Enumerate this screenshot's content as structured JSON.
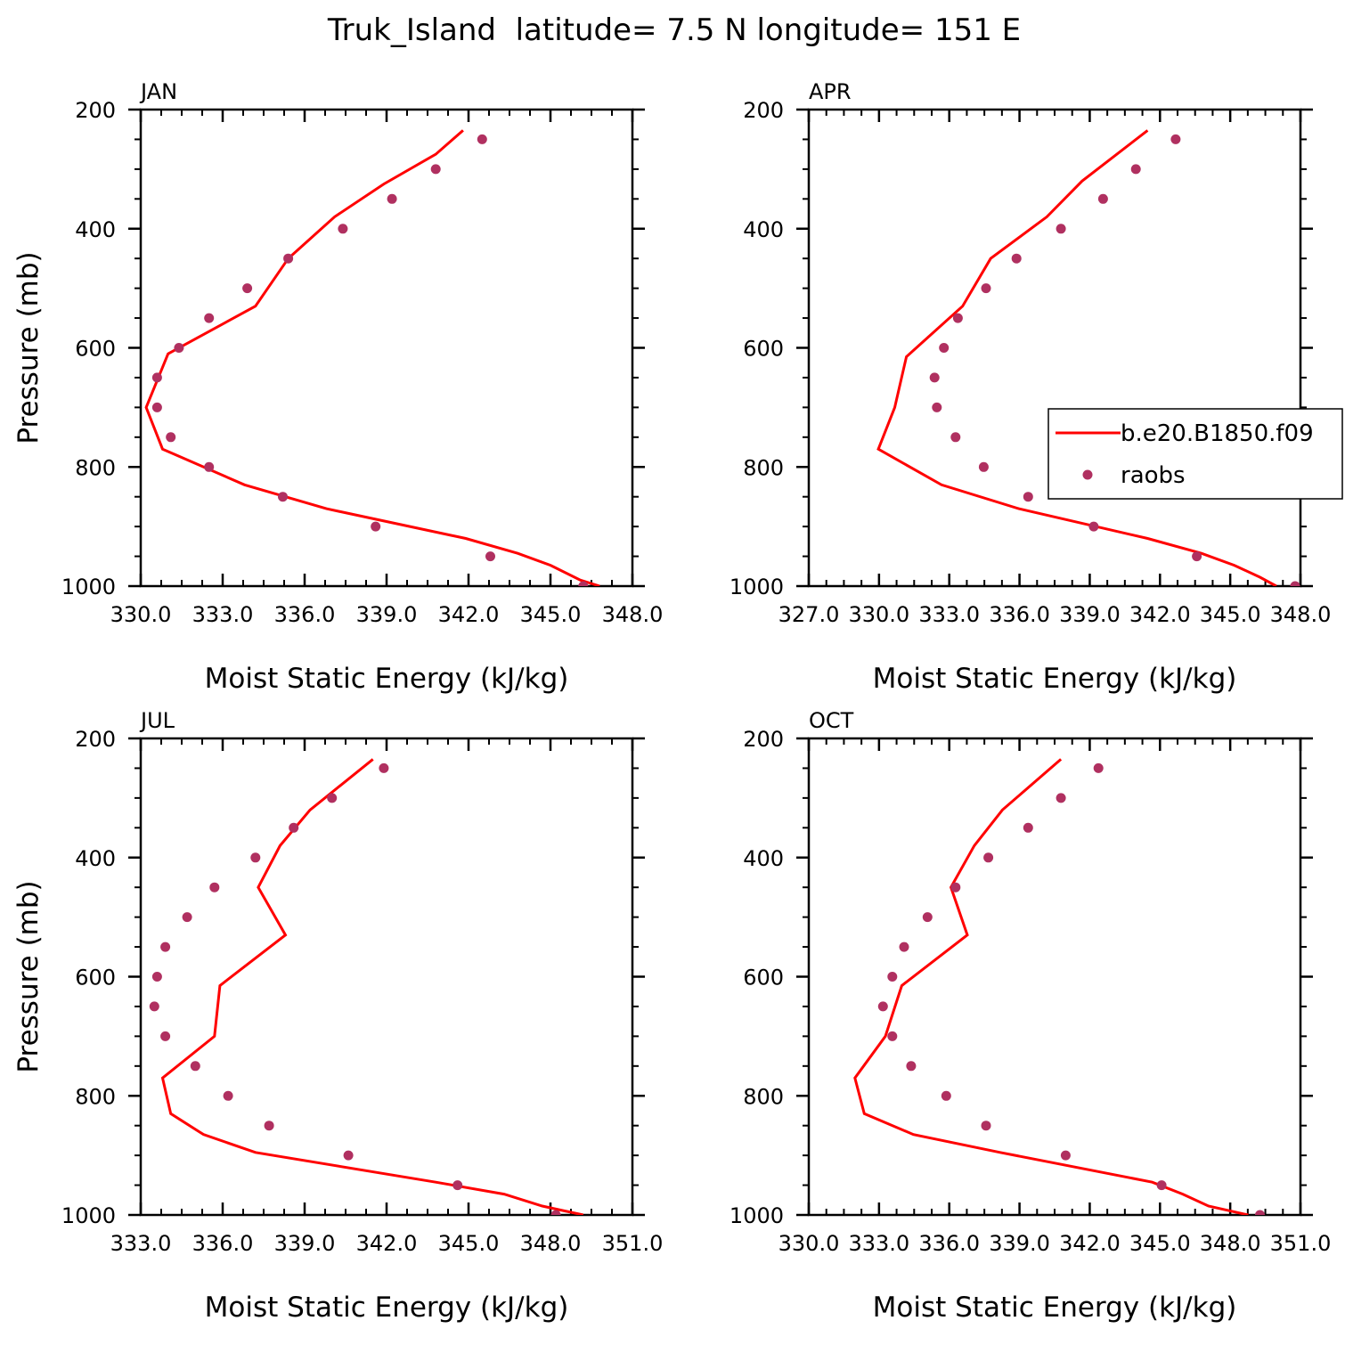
{
  "title": "Truk_Island  latitude= 7.5 N longitude= 151 E",
  "colors": {
    "model": "#ff0000",
    "obs": "#b03060",
    "axis": "#000000"
  },
  "legend": {
    "model_label": "b.e20.B1850.f09",
    "obs_label": "raobs"
  },
  "chart_data": [
    {
      "type": "line",
      "panel": "JAN",
      "xlabel": "Moist Static Energy (kJ/kg)",
      "ylabel": "Pressure (mb)",
      "xlim": [
        330,
        348
      ],
      "ylim": [
        1000,
        200
      ],
      "xticks": [
        "330.0",
        "333.0",
        "336.0",
        "339.0",
        "342.0",
        "345.0",
        "348.0"
      ],
      "yticks": [
        "200",
        "400",
        "600",
        "800",
        "1000"
      ],
      "series": [
        {
          "name": "b.e20.B1850.f09",
          "style": "line",
          "pressure": [
            235,
            275,
            325,
            380,
            450,
            530,
            610,
            700,
            770,
            830,
            870,
            920,
            945,
            965,
            990,
            1000
          ],
          "mse": [
            341.8,
            340.8,
            338.9,
            337.1,
            335.4,
            334.2,
            331.0,
            330.2,
            330.8,
            333.8,
            336.8,
            341.9,
            343.8,
            345.0,
            346.1,
            346.8
          ]
        },
        {
          "name": "raobs",
          "style": "dots",
          "pressure": [
            250,
            300,
            350,
            400,
            450,
            500,
            550,
            600,
            650,
            700,
            750,
            800,
            850,
            900,
            950,
            1000
          ],
          "mse": [
            342.5,
            340.8,
            339.2,
            337.4,
            335.4,
            333.9,
            332.5,
            331.4,
            330.6,
            330.6,
            331.1,
            332.5,
            335.2,
            338.6,
            342.8,
            346.2
          ]
        }
      ]
    },
    {
      "type": "line",
      "panel": "APR",
      "xlabel": "Moist Static Energy (kJ/kg)",
      "ylabel": "",
      "xlim": [
        327.03,
        348.03
      ],
      "ylim": [
        1000,
        200
      ],
      "xticks": [
        "327.0",
        "330.0",
        "333.0",
        "336.0",
        "339.0",
        "342.0",
        "345.0",
        "348.0"
      ],
      "yticks": [
        "200",
        "400",
        "600",
        "800",
        "1000"
      ],
      "legend_position": "right",
      "series": [
        {
          "name": "b.e20.B1850.f09",
          "style": "line",
          "pressure": [
            235,
            320,
            380,
            450,
            530,
            615,
            700,
            770,
            830,
            870,
            920,
            945,
            965,
            985,
            1000
          ],
          "mse": [
            341.5,
            338.7,
            337.2,
            334.8,
            333.6,
            331.2,
            330.7,
            330.0,
            332.7,
            336.0,
            341.5,
            343.8,
            345.2,
            346.3,
            347.0
          ]
        },
        {
          "name": "raobs",
          "style": "dots",
          "pressure": [
            250,
            300,
            350,
            400,
            450,
            500,
            550,
            600,
            650,
            700,
            750,
            800,
            850,
            900,
            950,
            1000
          ],
          "mse": [
            342.7,
            341.0,
            339.6,
            337.8,
            335.9,
            334.6,
            333.4,
            332.8,
            332.4,
            332.5,
            333.3,
            334.5,
            336.4,
            339.2,
            343.6,
            347.8
          ]
        }
      ]
    },
    {
      "type": "line",
      "panel": "JUL",
      "xlabel": "Moist Static Energy (kJ/kg)",
      "ylabel": "Pressure (mb)",
      "xlim": [
        333,
        351
      ],
      "ylim": [
        1000,
        200
      ],
      "xticks": [
        "333.0",
        "336.0",
        "339.0",
        "342.0",
        "345.0",
        "348.0",
        "351.0"
      ],
      "yticks": [
        "200",
        "400",
        "600",
        "800",
        "1000"
      ],
      "series": [
        {
          "name": "b.e20.B1850.f09",
          "style": "line",
          "pressure": [
            235,
            320,
            380,
            450,
            530,
            615,
            700,
            770,
            830,
            865,
            895,
            945,
            965,
            985,
            1000
          ],
          "mse": [
            341.5,
            339.2,
            338.1,
            337.3,
            338.3,
            335.9,
            335.7,
            333.8,
            334.1,
            335.3,
            337.2,
            343.8,
            346.3,
            347.7,
            349.2
          ]
        },
        {
          "name": "raobs",
          "style": "dots",
          "pressure": [
            250,
            300,
            350,
            400,
            450,
            500,
            550,
            600,
            650,
            700,
            750,
            800,
            850,
            900,
            950,
            1000
          ],
          "mse": [
            341.9,
            340.0,
            338.6,
            337.2,
            335.7,
            334.7,
            333.9,
            333.6,
            333.5,
            333.9,
            335.0,
            336.2,
            337.7,
            340.6,
            344.6,
            348.2
          ]
        }
      ]
    },
    {
      "type": "line",
      "panel": "OCT",
      "xlabel": "Moist Static Energy (kJ/kg)",
      "ylabel": "",
      "xlim": [
        330.03,
        351.03
      ],
      "ylim": [
        1000,
        200
      ],
      "xticks": [
        "330.0",
        "333.0",
        "336.0",
        "339.0",
        "342.0",
        "345.0",
        "348.0",
        "351.0"
      ],
      "yticks": [
        "200",
        "400",
        "600",
        "800",
        "1000"
      ],
      "series": [
        {
          "name": "b.e20.B1850.f09",
          "style": "line",
          "pressure": [
            235,
            320,
            380,
            450,
            530,
            615,
            700,
            770,
            830,
            865,
            895,
            945,
            965,
            985,
            1000
          ],
          "mse": [
            340.8,
            338.3,
            337.1,
            336.1,
            336.8,
            334.0,
            333.3,
            332.0,
            332.4,
            334.5,
            338.2,
            344.7,
            346.0,
            347.1,
            348.8
          ]
        },
        {
          "name": "raobs",
          "style": "dots",
          "pressure": [
            250,
            300,
            350,
            400,
            450,
            500,
            550,
            600,
            650,
            700,
            750,
            800,
            850,
            900,
            950,
            1000
          ],
          "mse": [
            342.4,
            340.8,
            339.4,
            337.7,
            336.3,
            335.1,
            334.1,
            333.6,
            333.2,
            333.6,
            334.4,
            335.9,
            337.6,
            341.0,
            345.1,
            349.3
          ]
        }
      ]
    }
  ]
}
